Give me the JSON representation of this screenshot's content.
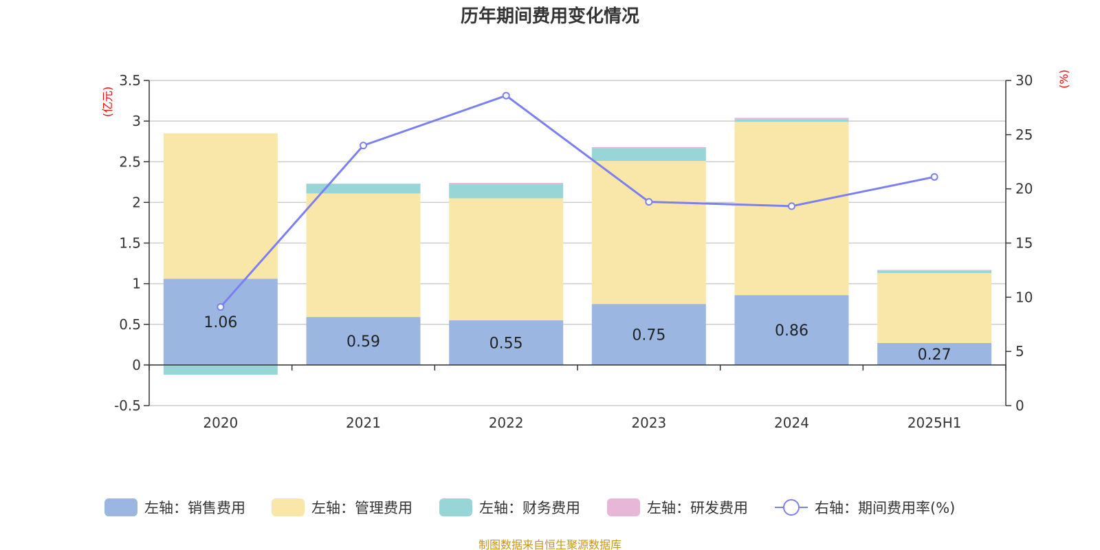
{
  "chart_data": {
    "type": "bar",
    "title": "历年期间费用变化情况",
    "categories": [
      "2020",
      "2021",
      "2022",
      "2023",
      "2024",
      "2025H1"
    ],
    "left_axis": {
      "unit": "(亿元)",
      "range": [
        -0.5,
        3.5
      ],
      "ticks": [
        "-0.5",
        "0",
        "0.5",
        "1",
        "1.5",
        "2",
        "2.5",
        "3",
        "3.5"
      ]
    },
    "right_axis": {
      "unit": "(%)",
      "range": [
        0,
        30
      ],
      "ticks": [
        "0",
        "5",
        "10",
        "15",
        "20",
        "25",
        "30"
      ]
    },
    "series": [
      {
        "name": "左轴：销售费用",
        "type": "bar",
        "stack": true,
        "axis": "left",
        "color": "#9bb6e0",
        "values": [
          1.06,
          0.59,
          0.55,
          0.75,
          0.86,
          0.27
        ],
        "labels": [
          "1.06",
          "0.59",
          "0.55",
          "0.75",
          "0.86",
          "0.27"
        ]
      },
      {
        "name": "左轴：管理费用",
        "type": "bar",
        "stack": true,
        "axis": "left",
        "color": "#f8e7a8",
        "values": [
          1.79,
          1.52,
          1.5,
          1.76,
          2.13,
          0.86
        ]
      },
      {
        "name": "左轴：财务费用",
        "type": "bar",
        "stack": true,
        "axis": "left",
        "color": "#98d5d6",
        "values": [
          -0.12,
          0.12,
          0.18,
          0.16,
          0.03,
          0.03
        ]
      },
      {
        "name": "左轴：研发费用",
        "type": "bar",
        "stack": true,
        "axis": "left",
        "color": "#e8b7d8",
        "values": [
          0.0,
          0.0,
          0.01,
          0.01,
          0.02,
          0.01
        ]
      },
      {
        "name": "右轴：期间费用率(%)",
        "type": "line",
        "axis": "right",
        "color": "#7b7ff0",
        "values": [
          9.1,
          24.0,
          28.6,
          18.8,
          18.4,
          21.1
        ]
      }
    ],
    "grid": true,
    "legend_position": "bottom"
  },
  "footer": {
    "source": "制图数据来自恒生聚源数据库"
  }
}
